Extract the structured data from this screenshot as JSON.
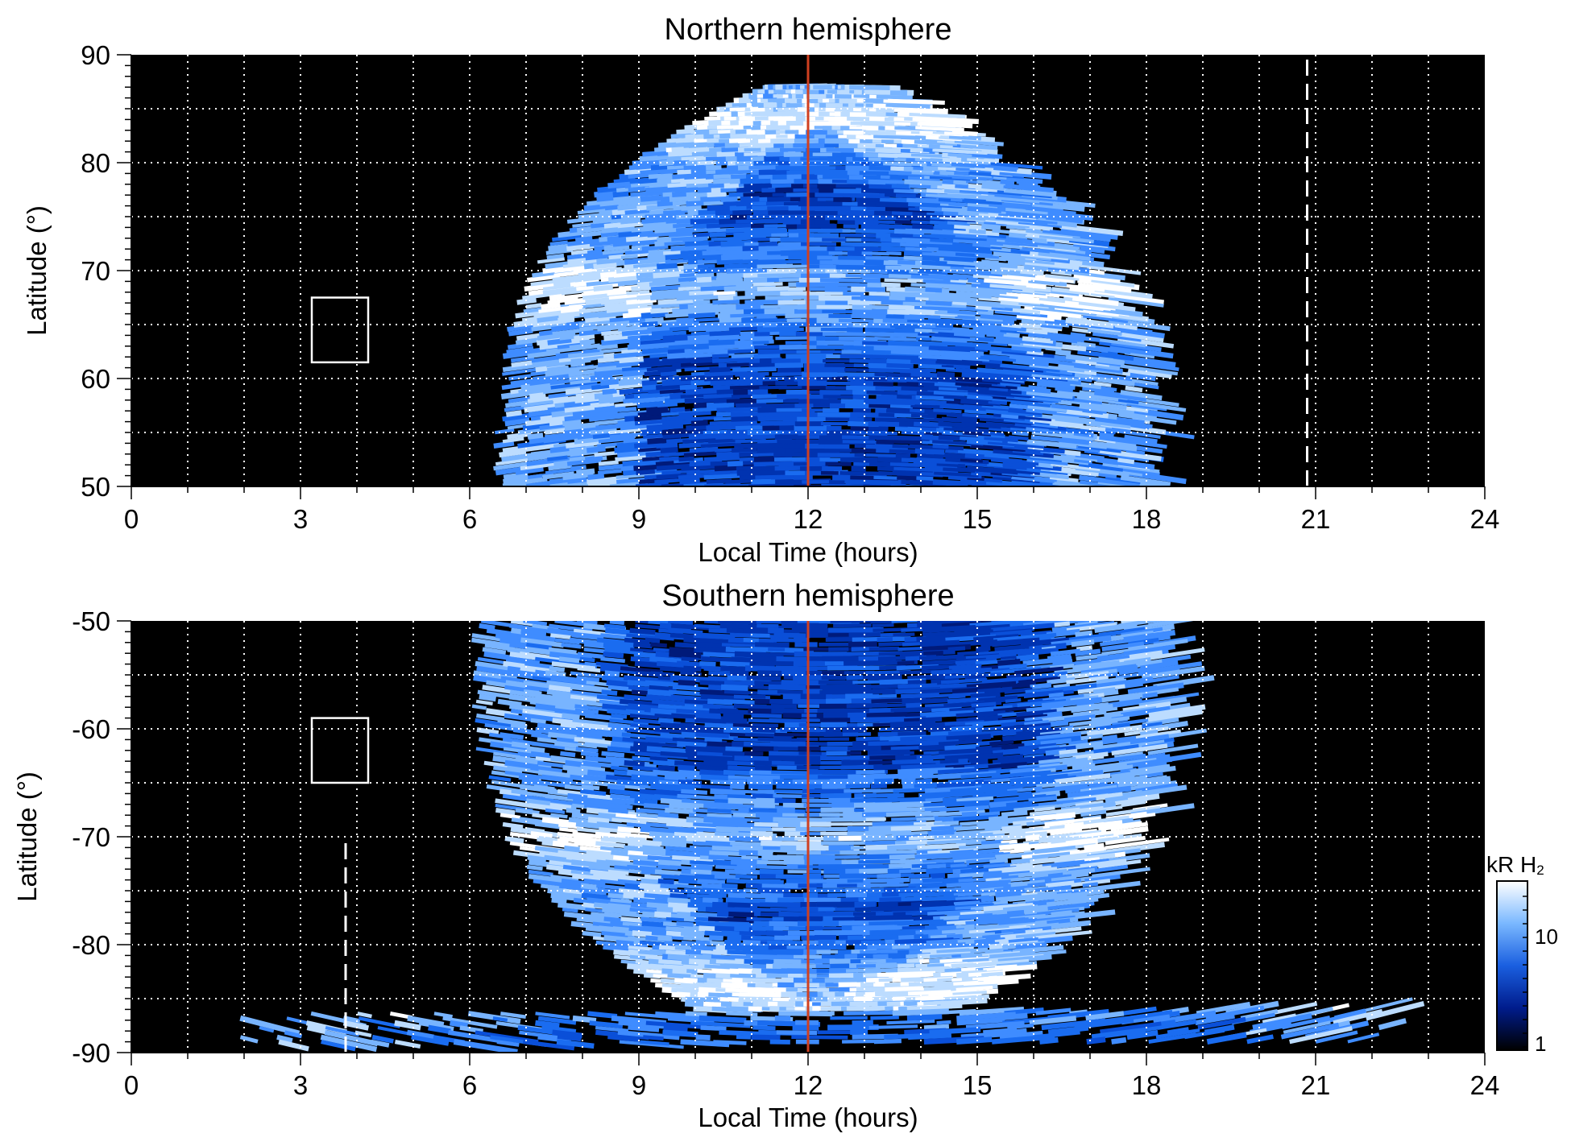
{
  "chart_data": [
    {
      "type": "heatmap",
      "title": "Northern hemisphere",
      "xlabel": "Local Time (hours)",
      "ylabel": "Latitude (°)",
      "xlim": [
        0,
        24
      ],
      "ylim": [
        50,
        90
      ],
      "x_ticks": [
        0,
        3,
        6,
        9,
        12,
        15,
        18,
        21,
        24
      ],
      "y_ticks": [
        50,
        60,
        70,
        80,
        90
      ],
      "grid": true,
      "emission": {
        "lt_min_at_lat50": 6.4,
        "lt_max_at_lat50": 17.9,
        "max_latitude": 87,
        "bright_oval_latitudes": [
          68,
          84
        ]
      },
      "noon_line_lt": 12,
      "dashed_line_lt": 20.85,
      "box": {
        "lt": [
          3.2,
          4.2
        ],
        "lat": [
          61.5,
          67.5
        ]
      }
    },
    {
      "type": "heatmap",
      "title": "Southern hemisphere",
      "xlabel": "Local Time (hours)",
      "ylabel": "Latitude (°)",
      "xlim": [
        0,
        24
      ],
      "ylim": [
        -90,
        -50
      ],
      "x_ticks": [
        0,
        3,
        6,
        9,
        12,
        15,
        18,
        21,
        24
      ],
      "y_ticks": [
        -50,
        -60,
        -70,
        -80,
        -90
      ],
      "grid": true,
      "emission": {
        "lt_min_at_lat50": 6.0,
        "lt_max_at_lat50": 18.3,
        "max_latitude": -89,
        "bright_oval_latitudes": [
          -70,
          -84
        ]
      },
      "noon_line_lt": 12,
      "dashed_line_lt": 3.8,
      "dashed_line_lat": [
        -90,
        -70
      ],
      "box": {
        "lt": [
          3.2,
          4.2
        ],
        "lat": [
          -65,
          -59
        ]
      }
    }
  ],
  "colorbar": {
    "label_prefix": "kR H",
    "label_sub": "2",
    "ticks": [
      "1",
      "10"
    ],
    "colors": [
      "#000000",
      "#001c8c",
      "#1a5fe0",
      "#7ab8ff",
      "#ffffff"
    ]
  }
}
